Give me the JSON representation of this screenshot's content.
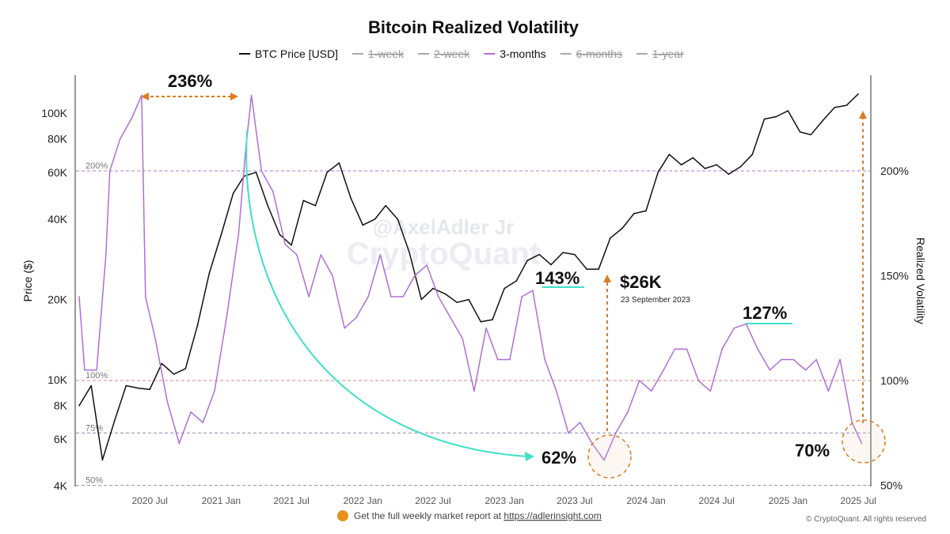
{
  "chart_data": {
    "type": "line",
    "title": "Bitcoin Realized Volatility",
    "legend": {
      "placement": "top",
      "items": [
        {
          "label": "BTC Price [USD]",
          "color": "#111111",
          "active": true
        },
        {
          "label": "1-week",
          "color": "#999999",
          "active": false
        },
        {
          "label": "2-week",
          "color": "#999999",
          "active": false
        },
        {
          "label": "3-months",
          "color": "#b06fd6",
          "active": true
        },
        {
          "label": "6-months",
          "color": "#999999",
          "active": false
        },
        {
          "label": "1-year",
          "color": "#999999",
          "active": false
        }
      ]
    },
    "ylabel_left": "Price ($)",
    "ylabel_right": "Realized Volatility",
    "y_left_scale": "log",
    "y_left_range": [
      4000,
      130000
    ],
    "y_left_ticks": [
      {
        "value": 4000,
        "label": "4K"
      },
      {
        "value": 6000,
        "label": "6K"
      },
      {
        "value": 8000,
        "label": "8K"
      },
      {
        "value": 10000,
        "label": "10K"
      },
      {
        "value": 20000,
        "label": "20K"
      },
      {
        "value": 40000,
        "label": "40K"
      },
      {
        "value": 60000,
        "label": "60K"
      },
      {
        "value": 80000,
        "label": "80K"
      },
      {
        "value": 100000,
        "label": "100K"
      }
    ],
    "y_right_range": [
      50,
      240
    ],
    "y_right_ticks": [
      {
        "value": 50,
        "label": "50%"
      },
      {
        "value": 100,
        "label": "100%"
      },
      {
        "value": 150,
        "label": "150%"
      },
      {
        "value": 200,
        "label": "200%"
      }
    ],
    "reference_lines": [
      {
        "value": 200,
        "label": "200%",
        "color": "#b07ad0"
      },
      {
        "value": 100,
        "label": "100%",
        "color": "#d08a8a"
      },
      {
        "value": 75,
        "label": "75%",
        "color": "#8a8ab0"
      },
      {
        "value": 50,
        "label": "50%",
        "color": "#999999"
      }
    ],
    "x_ticks": [
      "2020 Jul",
      "2021 Jan",
      "2021 Jul",
      "2022 Jan",
      "2022 Jul",
      "2023 Jan",
      "2023 Jul",
      "2024 Jan",
      "2024 Jul",
      "2025 Jan",
      "2025 Jul"
    ],
    "x_range": [
      "2020-01",
      "2025-07"
    ],
    "grid": false,
    "series": [
      {
        "name": "BTC Price [USD]",
        "axis": "left",
        "color": "#111111",
        "x": [
          "2020-01",
          "2020-02",
          "2020-03",
          "2020-04",
          "2020-05",
          "2020-06",
          "2020-07",
          "2020-08",
          "2020-09",
          "2020-10",
          "2020-11",
          "2020-12",
          "2021-01",
          "2021-02",
          "2021-03",
          "2021-04",
          "2021-05",
          "2021-06",
          "2021-07",
          "2021-08",
          "2021-09",
          "2021-10",
          "2021-11",
          "2021-12",
          "2022-01",
          "2022-02",
          "2022-03",
          "2022-04",
          "2022-05",
          "2022-06",
          "2022-07",
          "2022-08",
          "2022-09",
          "2022-10",
          "2022-11",
          "2022-12",
          "2023-01",
          "2023-02",
          "2023-03",
          "2023-04",
          "2023-05",
          "2023-06",
          "2023-07",
          "2023-08",
          "2023-09",
          "2023-10",
          "2023-11",
          "2023-12",
          "2024-01",
          "2024-02",
          "2024-03",
          "2024-04",
          "2024-05",
          "2024-06",
          "2024-07",
          "2024-08",
          "2024-09",
          "2024-10",
          "2024-11",
          "2024-12",
          "2025-01",
          "2025-02",
          "2025-03",
          "2025-04",
          "2025-05",
          "2025-06",
          "2025-07"
        ],
        "values": [
          8000,
          9500,
          5000,
          7000,
          9500,
          9300,
          9200,
          11500,
          10500,
          11000,
          16000,
          25000,
          35000,
          50000,
          58000,
          60000,
          45000,
          35000,
          32000,
          47000,
          45000,
          60000,
          65000,
          48000,
          38000,
          40000,
          45000,
          40000,
          30000,
          20000,
          22000,
          21000,
          19500,
          20000,
          16500,
          16800,
          22000,
          23500,
          28000,
          29500,
          27000,
          30000,
          29500,
          26000,
          26000,
          34000,
          37000,
          42000,
          43000,
          60000,
          70000,
          64000,
          68000,
          62000,
          64000,
          59000,
          63000,
          70000,
          95000,
          97000,
          102000,
          85000,
          83000,
          94000,
          105000,
          107000,
          118000
        ]
      },
      {
        "name": "3-months",
        "axis": "right",
        "color": "#b06fd6",
        "x": [
          "2020-01-01",
          "2020-01-15",
          "2020-02-15",
          "2020-03-10",
          "2020-03-20",
          "2020-04-15",
          "2020-05-15",
          "2020-06-10",
          "2020-06-20",
          "2020-07-15",
          "2020-08-15",
          "2020-09-15",
          "2020-10-15",
          "2020-11-15",
          "2020-12-15",
          "2021-01-15",
          "2021-02-15",
          "2021-03-05",
          "2021-03-20",
          "2021-04-15",
          "2021-05-15",
          "2021-06-15",
          "2021-07-15",
          "2021-08-15",
          "2021-09-15",
          "2021-10-15",
          "2021-11-15",
          "2021-12-15",
          "2022-01-15",
          "2022-02-15",
          "2022-03-15",
          "2022-04-15",
          "2022-05-15",
          "2022-06-15",
          "2022-07-15",
          "2022-08-15",
          "2022-09-15",
          "2022-10-15",
          "2022-11-15",
          "2022-12-15",
          "2023-01-15",
          "2023-02-15",
          "2023-03-15",
          "2023-04-15",
          "2023-05-15",
          "2023-06-15",
          "2023-07-15",
          "2023-08-15",
          "2023-09-15",
          "2023-10-15",
          "2023-11-15",
          "2023-12-15",
          "2024-01-15",
          "2024-02-15",
          "2024-03-15",
          "2024-04-15",
          "2024-05-15",
          "2024-06-15",
          "2024-07-15",
          "2024-08-15",
          "2024-09-15",
          "2024-10-15",
          "2024-11-15",
          "2024-12-15",
          "2025-01-15",
          "2025-02-15",
          "2025-03-15",
          "2025-04-15",
          "2025-05-15",
          "2025-06-15",
          "2025-07-10"
        ],
        "values": [
          140,
          105,
          105,
          160,
          200,
          215,
          225,
          236,
          140,
          120,
          90,
          70,
          85,
          80,
          95,
          130,
          170,
          210,
          236,
          200,
          190,
          165,
          160,
          140,
          160,
          150,
          125,
          130,
          140,
          160,
          140,
          140,
          150,
          155,
          140,
          130,
          120,
          95,
          125,
          110,
          110,
          140,
          143,
          110,
          95,
          75,
          80,
          70,
          62,
          75,
          85,
          100,
          95,
          105,
          115,
          115,
          100,
          95,
          115,
          125,
          127,
          115,
          105,
          110,
          110,
          105,
          110,
          95,
          110,
          80,
          70
        ]
      }
    ],
    "annotations": {
      "peak_label": "236%",
      "high_2023": "143%",
      "high_2024": "127%",
      "low_2023": "62%",
      "low_2025": "70%",
      "price_callout": "$26K",
      "price_callout_date": "23 September 2023"
    }
  },
  "watermark": {
    "line1": "@AxelAdler Jr",
    "line2": "CryptoQuant"
  },
  "footer": {
    "promo_text": "Get the full weekly market report at ",
    "promo_link": "https://adlerinsight.com",
    "copyright": "© CryptoQuant. All rights reserved"
  }
}
